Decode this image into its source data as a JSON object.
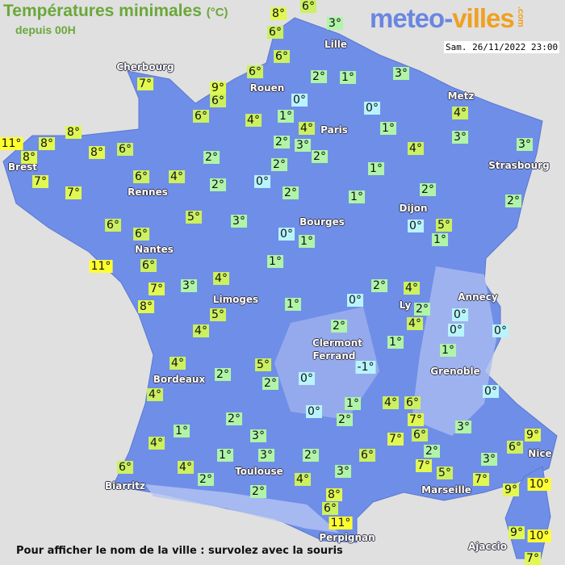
{
  "header": {
    "title": "Températures minimales",
    "unit": "(°C)",
    "subtitle": "depuis 00H",
    "date": "Sam. 26/11/2022 23:00"
  },
  "logo": {
    "part1": "meteo-",
    "part2": "villes",
    "tld": ".com"
  },
  "footer": "Pour afficher le nom de la ville : survolez avec la souris",
  "colors": {
    "land": "#6f8ee8",
    "t0": "#b8f4fc",
    "t1_3": "#b0f4a8",
    "t4_6": "#ccf060",
    "t7_9": "#e0f850",
    "t10_plus": "#ffff30"
  },
  "cities": [
    "Lille",
    "Cherbourg",
    "Rouen",
    "Metz",
    "Paris",
    "Brest",
    "Strasbourg",
    "Rennes",
    "Dijon",
    "Bourges",
    "Nantes",
    "Annecy",
    "Limoges",
    "Ly",
    "Clermont",
    "Ferrand",
    "Grenoble",
    "Bordeaux",
    "Nice",
    "Toulouse",
    "Biarritz",
    "Marseille",
    "Perpignan",
    "Ajaccio"
  ],
  "temperatures": [
    "8°",
    "6°",
    "6°",
    "3°",
    "6°",
    "6°",
    "2°",
    "1°",
    "3°",
    "7°",
    "9°",
    "6°",
    "6°",
    "0°",
    "0°",
    "4°",
    "1°",
    "4°",
    "1°",
    "4°",
    "3°",
    "8°",
    "11°",
    "8°",
    "8°",
    "8°",
    "6°",
    "2°",
    "2°",
    "3°",
    "2°",
    "4°",
    "3°",
    "7°",
    "7°",
    "6°",
    "4°",
    "2°",
    "0°",
    "2°",
    "2°",
    "1°",
    "2°",
    "2°",
    "1°",
    "5°",
    "3°",
    "0°",
    "5°",
    "1°",
    "6°",
    "6°",
    "0°",
    "1°",
    "11°",
    "6°",
    "1°",
    "7°",
    "3°",
    "4°",
    "8°",
    "2°",
    "4°",
    "2°",
    "4°",
    "0°",
    "0°",
    "0°",
    "0°",
    "1°",
    "5°",
    "4°",
    "2°",
    "1°",
    "1°",
    "4°",
    "2°",
    "5°",
    "2°",
    "0°",
    "4°",
    "-1°",
    "0°",
    "0°",
    "1°",
    "2°",
    "4°",
    "6°",
    "2°",
    "7°",
    "3°",
    "1°",
    "4°",
    "3°",
    "7°",
    "6°",
    "2°",
    "7°",
    "5°",
    "3°",
    "9°",
    "6°",
    "1°",
    "3°",
    "2°",
    "6°",
    "4°",
    "6°",
    "2°",
    "3°",
    "4°",
    "7°",
    "9°",
    "10°",
    "2°",
    "8°",
    "6°",
    "11°",
    "9°",
    "10°",
    "7°"
  ]
}
